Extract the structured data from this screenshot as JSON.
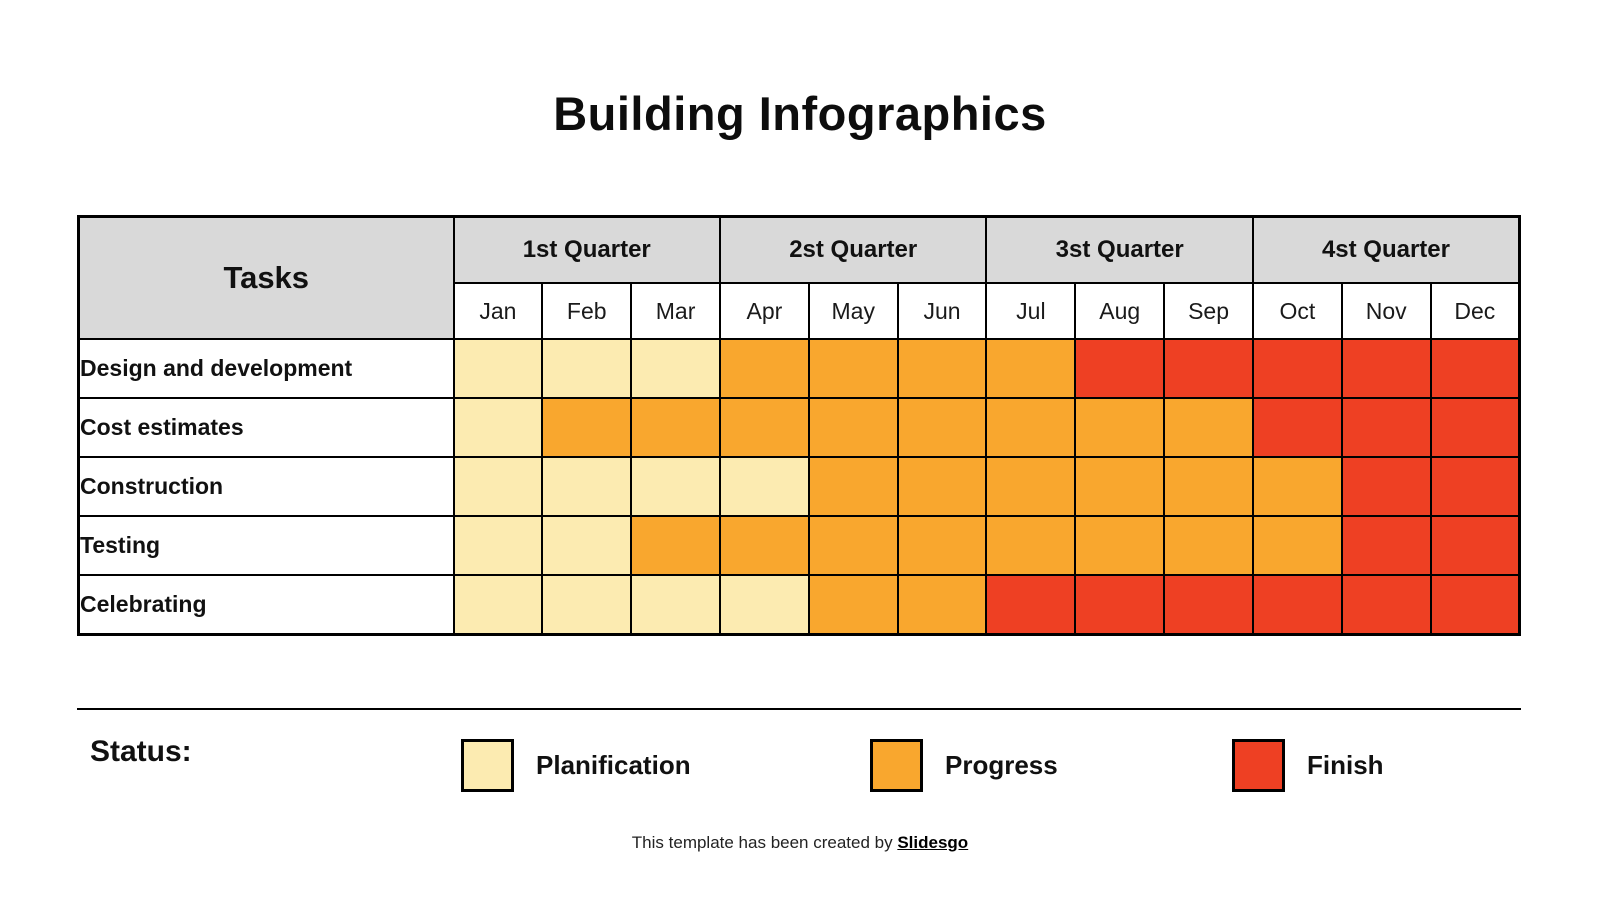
{
  "title": "Building Infographics",
  "table": {
    "tasks_header": "Tasks",
    "quarters": [
      "1st Quarter",
      "2st Quarter",
      "3st Quarter",
      "4st Quarter"
    ],
    "months": [
      "Jan",
      "Feb",
      "Mar",
      "Apr",
      "May",
      "Jun",
      "Jul",
      "Aug",
      "Sep",
      "Oct",
      "Nov",
      "Dec"
    ],
    "rows": [
      {
        "task": "Design and development",
        "cells": [
          "plan",
          "plan",
          "plan",
          "progress",
          "progress",
          "progress",
          "progress",
          "finish",
          "finish",
          "finish",
          "finish",
          "finish"
        ]
      },
      {
        "task": "Cost estimates",
        "cells": [
          "plan",
          "progress",
          "progress",
          "progress",
          "progress",
          "progress",
          "progress",
          "progress",
          "progress",
          "finish",
          "finish",
          "finish"
        ]
      },
      {
        "task": "Construction",
        "cells": [
          "plan",
          "plan",
          "plan",
          "plan",
          "progress",
          "progress",
          "progress",
          "progress",
          "progress",
          "progress",
          "finish",
          "finish"
        ]
      },
      {
        "task": "Testing",
        "cells": [
          "plan",
          "plan",
          "progress",
          "progress",
          "progress",
          "progress",
          "progress",
          "progress",
          "progress",
          "progress",
          "finish",
          "finish"
        ]
      },
      {
        "task": "Celebrating",
        "cells": [
          "plan",
          "plan",
          "plan",
          "plan",
          "progress",
          "progress",
          "finish",
          "finish",
          "finish",
          "finish",
          "finish",
          "finish"
        ]
      }
    ]
  },
  "colors": {
    "plan": "#FCEBB1",
    "progress": "#F9A72E",
    "finish": "#EE4023",
    "header_bg": "#D9D9D9",
    "border": "#000000"
  },
  "legend": {
    "label": "Status:",
    "items": [
      {
        "key": "plan",
        "name": "Planification",
        "color": "#FCEBB1"
      },
      {
        "key": "progress",
        "name": "Progress",
        "color": "#F9A72E"
      },
      {
        "key": "finish",
        "name": "Finish",
        "color": "#EE4023"
      }
    ]
  },
  "footer": {
    "text": "This template has been created by ",
    "brand": "Slidesgo"
  },
  "chart_data": {
    "type": "heatmap",
    "title": "Building Infographics",
    "x": [
      "Jan",
      "Feb",
      "Mar",
      "Apr",
      "May",
      "Jun",
      "Jul",
      "Aug",
      "Sep",
      "Oct",
      "Nov",
      "Dec"
    ],
    "x_groups": [
      "1st Quarter",
      "2st Quarter",
      "3st Quarter",
      "4st Quarter"
    ],
    "y": [
      "Design and development",
      "Cost estimates",
      "Construction",
      "Testing",
      "Celebrating"
    ],
    "values": [
      [
        "plan",
        "plan",
        "plan",
        "progress",
        "progress",
        "progress",
        "progress",
        "finish",
        "finish",
        "finish",
        "finish",
        "finish"
      ],
      [
        "plan",
        "progress",
        "progress",
        "progress",
        "progress",
        "progress",
        "progress",
        "progress",
        "progress",
        "finish",
        "finish",
        "finish"
      ],
      [
        "plan",
        "plan",
        "plan",
        "plan",
        "progress",
        "progress",
        "progress",
        "progress",
        "progress",
        "progress",
        "finish",
        "finish"
      ],
      [
        "plan",
        "plan",
        "progress",
        "progress",
        "progress",
        "progress",
        "progress",
        "progress",
        "progress",
        "progress",
        "finish",
        "finish"
      ],
      [
        "plan",
        "plan",
        "plan",
        "plan",
        "progress",
        "progress",
        "finish",
        "finish",
        "finish",
        "finish",
        "finish",
        "finish"
      ]
    ],
    "value_labels": {
      "plan": "Planification",
      "progress": "Progress",
      "finish": "Finish"
    },
    "value_colors": {
      "plan": "#FCEBB1",
      "progress": "#F9A72E",
      "finish": "#EE4023"
    },
    "legend_position": "bottom",
    "grid": true
  }
}
